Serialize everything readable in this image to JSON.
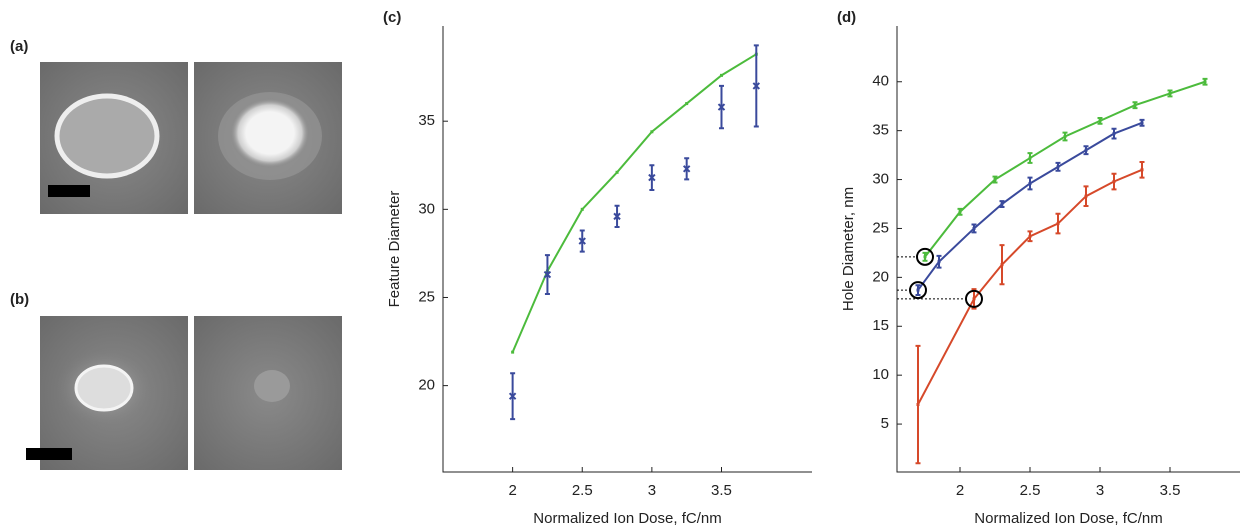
{
  "image_panels": [
    {
      "label": "(a)"
    },
    {
      "label": "(b)"
    }
  ],
  "chart_data": [
    {
      "type": "line",
      "panel_label": "(c)",
      "xlabel": "Normalized Ion Dose, fC/nm",
      "ylabel": "Feature Diameter",
      "xlim": [
        1.5,
        4.15
      ],
      "ylim": [
        15.1,
        40.4
      ],
      "xticks": [
        2,
        2.5,
        3,
        3.5
      ],
      "yticks": [
        20,
        25,
        30,
        35
      ],
      "x": [
        2,
        2.25,
        2.5,
        2.75,
        3,
        3.25,
        3.5,
        3.75
      ],
      "series": [
        {
          "color": "#4cbb3c",
          "line": true,
          "marker": "tick",
          "values": [
            21.9,
            26.5,
            30,
            32.1,
            34.4,
            36,
            37.6,
            38.8
          ]
        },
        {
          "color": "#3a4a9c",
          "line": false,
          "marker": "x",
          "values": [
            19.4,
            26.3,
            28.2,
            29.6,
            31.8,
            32.3,
            35.8,
            37.0
          ],
          "errors": [
            1.3,
            1.1,
            0.6,
            0.6,
            0.7,
            0.6,
            1.2,
            2.3
          ]
        }
      ]
    },
    {
      "type": "line",
      "panel_label": "(d)",
      "xlabel": "Normalized Ion Dose, fC/nm",
      "ylabel": "Hole Diameter, nm",
      "xlim": [
        1.55,
        4.0
      ],
      "ylim": [
        0.1,
        45.7
      ],
      "xticks": [
        2,
        2.5,
        3,
        3.5
      ],
      "yticks": [
        5,
        10,
        15,
        20,
        25,
        30,
        35,
        40
      ],
      "series": [
        {
          "color": "#4cbb3c",
          "line": true,
          "marker": "tick",
          "highlight": 0,
          "x": [
            1.75,
            2,
            2.25,
            2.5,
            2.75,
            3,
            3.25,
            3.5,
            3.75
          ],
          "values": [
            22.1,
            26.7,
            30,
            32.2,
            34.4,
            36,
            37.6,
            38.8,
            40
          ],
          "errors": [
            0.4,
            0.3,
            0.3,
            0.5,
            0.4,
            0.3,
            0.3,
            0.3,
            0.3
          ]
        },
        {
          "color": "#3a4a9c",
          "line": true,
          "marker": "tick",
          "highlight": 0,
          "x": [
            1.7,
            1.85,
            2.1,
            2.3,
            2.5,
            2.7,
            2.9,
            3.1,
            3.3
          ],
          "values": [
            18.7,
            21.6,
            25,
            27.5,
            29.6,
            31.3,
            33,
            34.7,
            35.8
          ],
          "errors": [
            0.5,
            0.6,
            0.4,
            0.3,
            0.6,
            0.4,
            0.4,
            0.5,
            0.3
          ]
        },
        {
          "color": "#d6492a",
          "line": true,
          "marker": "tick",
          "highlight": 1,
          "x": [
            1.7,
            2.1,
            2.3,
            2.5,
            2.7,
            2.9,
            3.1,
            3.3
          ],
          "values": [
            7,
            17.8,
            21.3,
            24.2,
            25.5,
            28.3,
            29.8,
            31
          ],
          "errors": [
            6,
            1,
            2,
            0.5,
            1,
            1,
            0.8,
            0.8
          ]
        }
      ]
    }
  ]
}
